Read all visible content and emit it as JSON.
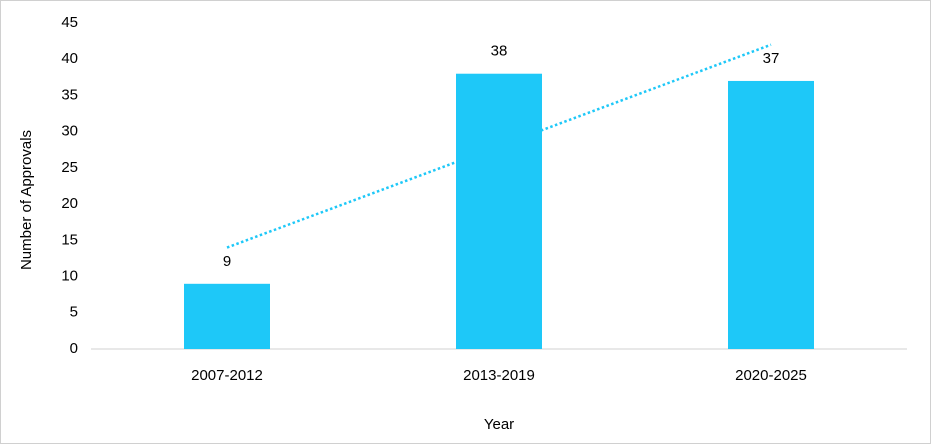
{
  "chart_data": {
    "type": "bar",
    "x_label": "Year",
    "y_label": "Number of Approvals",
    "categories": [
      "2007-2012",
      "2013-2019",
      "2020-2025"
    ],
    "values": [
      9,
      38,
      37
    ],
    "color": "#1ec8f8",
    "trendline": {
      "values": [
        14,
        28,
        42
      ],
      "color": "#1ec8f8",
      "style": "dotted"
    },
    "ylim": [
      0,
      45
    ],
    "yticks": [
      0,
      5,
      10,
      15,
      20,
      25,
      30,
      35,
      40,
      45
    ],
    "grid": false
  }
}
